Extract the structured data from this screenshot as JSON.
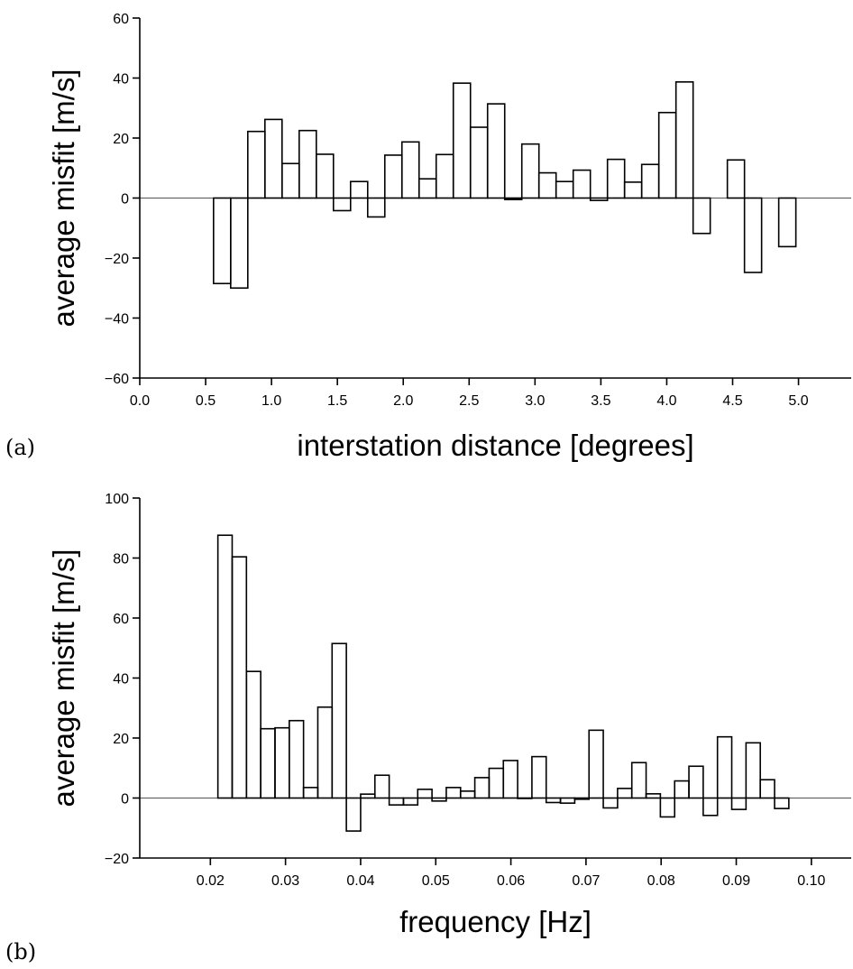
{
  "chart_data": [
    {
      "type": "bar",
      "panel_label": "(a)",
      "xlabel": "interstation distance [degrees]",
      "ylabel": "average misfit [m/s]",
      "xlim": [
        0.0,
        5.4
      ],
      "ylim": [
        -60,
        60
      ],
      "xticks": [
        "0.0",
        "0.5",
        "1.0",
        "1.5",
        "2.0",
        "2.5",
        "3.0",
        "3.5",
        "4.0",
        "4.5",
        "5.0"
      ],
      "yticks": [
        "60",
        "40",
        "20",
        "0",
        "−20",
        "−40",
        "−60"
      ],
      "bin_width": 0.13,
      "grid": false,
      "zero_line": true,
      "bins": [
        {
          "x": 0.56,
          "y": -28.5
        },
        {
          "x": 0.69,
          "y": -30.0
        },
        {
          "x": 0.82,
          "y": 22.2
        },
        {
          "x": 0.95,
          "y": 26.2
        },
        {
          "x": 1.08,
          "y": 11.5
        },
        {
          "x": 1.21,
          "y": 22.5
        },
        {
          "x": 1.34,
          "y": 14.6
        },
        {
          "x": 1.47,
          "y": -4.2
        },
        {
          "x": 1.6,
          "y": 5.5
        },
        {
          "x": 1.73,
          "y": -6.3
        },
        {
          "x": 1.86,
          "y": 14.3
        },
        {
          "x": 1.99,
          "y": 18.7
        },
        {
          "x": 2.12,
          "y": 6.4
        },
        {
          "x": 2.25,
          "y": 14.5
        },
        {
          "x": 2.38,
          "y": 38.3
        },
        {
          "x": 2.51,
          "y": 23.6
        },
        {
          "x": 2.64,
          "y": 31.4
        },
        {
          "x": 2.77,
          "y": -0.5
        },
        {
          "x": 2.9,
          "y": 18.0
        },
        {
          "x": 3.03,
          "y": 8.4
        },
        {
          "x": 3.16,
          "y": 5.5
        },
        {
          "x": 3.29,
          "y": 9.3
        },
        {
          "x": 3.42,
          "y": -0.8
        },
        {
          "x": 3.55,
          "y": 12.9
        },
        {
          "x": 3.68,
          "y": 5.3
        },
        {
          "x": 3.81,
          "y": 11.2
        },
        {
          "x": 3.94,
          "y": 28.5
        },
        {
          "x": 4.07,
          "y": 38.7
        },
        {
          "x": 4.2,
          "y": -11.8
        },
        {
          "x": 4.46,
          "y": 12.7
        },
        {
          "x": 4.59,
          "y": -24.8
        },
        {
          "x": 4.85,
          "y": -16.2
        }
      ]
    },
    {
      "type": "bar",
      "panel_label": "(b)",
      "xlabel": "frequency [Hz]",
      "ylabel": "average misfit [m/s]",
      "xlim": [
        0.0106,
        0.1053
      ],
      "ylim": [
        -20,
        100
      ],
      "xticks": [
        "0.02",
        "0.03",
        "0.04",
        "0.05",
        "0.06",
        "0.07",
        "0.08",
        "0.09",
        "0.10"
      ],
      "yticks": [
        "100",
        "80",
        "60",
        "40",
        "20",
        "0",
        "−20"
      ],
      "bin_width": 0.0019,
      "grid": false,
      "zero_line": true,
      "bins": [
        {
          "x": 0.021,
          "y": 87.6
        },
        {
          "x": 0.0229,
          "y": 80.4
        },
        {
          "x": 0.0248,
          "y": 42.2
        },
        {
          "x": 0.0267,
          "y": 23.1
        },
        {
          "x": 0.0286,
          "y": 23.4
        },
        {
          "x": 0.0305,
          "y": 25.8
        },
        {
          "x": 0.0324,
          "y": 3.5
        },
        {
          "x": 0.0343,
          "y": 30.3
        },
        {
          "x": 0.0362,
          "y": 51.5
        },
        {
          "x": 0.0381,
          "y": -11.0
        },
        {
          "x": 0.04,
          "y": 1.3
        },
        {
          "x": 0.0419,
          "y": 7.6
        },
        {
          "x": 0.0438,
          "y": -2.3
        },
        {
          "x": 0.0457,
          "y": -2.3
        },
        {
          "x": 0.0476,
          "y": 2.9
        },
        {
          "x": 0.0495,
          "y": -1.0
        },
        {
          "x": 0.0514,
          "y": 3.5
        },
        {
          "x": 0.0533,
          "y": 2.3
        },
        {
          "x": 0.0552,
          "y": 6.8
        },
        {
          "x": 0.0571,
          "y": 9.9
        },
        {
          "x": 0.059,
          "y": 12.5
        },
        {
          "x": 0.0609,
          "y": 0.0
        },
        {
          "x": 0.0628,
          "y": 13.8
        },
        {
          "x": 0.0647,
          "y": -1.5
        },
        {
          "x": 0.0666,
          "y": -1.7
        },
        {
          "x": 0.0685,
          "y": -0.4
        },
        {
          "x": 0.0704,
          "y": 22.6
        },
        {
          "x": 0.0723,
          "y": -3.3
        },
        {
          "x": 0.0742,
          "y": 3.2
        },
        {
          "x": 0.0761,
          "y": 11.8
        },
        {
          "x": 0.078,
          "y": 1.4
        },
        {
          "x": 0.0799,
          "y": -6.3
        },
        {
          "x": 0.0818,
          "y": 5.7
        },
        {
          "x": 0.0837,
          "y": 10.6
        },
        {
          "x": 0.0856,
          "y": -5.8
        },
        {
          "x": 0.0875,
          "y": 20.4
        },
        {
          "x": 0.0894,
          "y": -3.8
        },
        {
          "x": 0.0913,
          "y": 18.4
        },
        {
          "x": 0.0932,
          "y": 6.1
        },
        {
          "x": 0.0951,
          "y": -3.5
        }
      ]
    }
  ]
}
